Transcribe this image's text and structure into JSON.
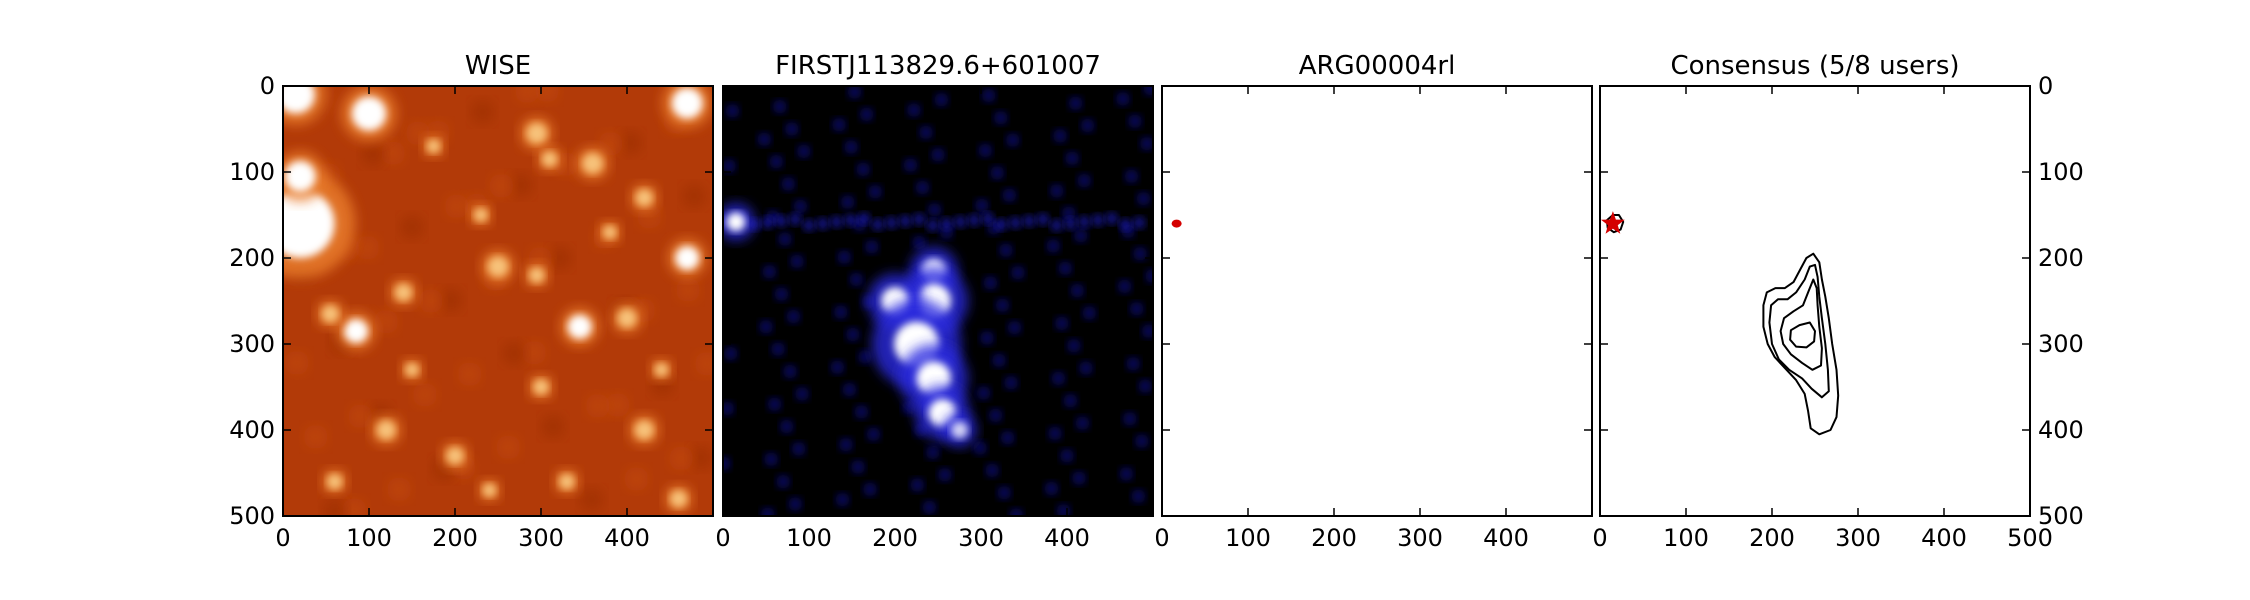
{
  "chart_data": [
    {
      "type": "heatmap",
      "title": "WISE",
      "colormap": "orange-white",
      "xlim": [
        0,
        500
      ],
      "ylim": [
        500,
        0
      ],
      "x_ticks": [
        0,
        100,
        200,
        300,
        400
      ],
      "y_ticks": [
        0,
        100,
        200,
        300,
        400,
        500
      ],
      "y_tick_side": "left",
      "bright_sources": [
        {
          "x": 15,
          "y": 10,
          "r": 22
        },
        {
          "x": 100,
          "y": 32,
          "r": 20
        },
        {
          "x": 20,
          "y": 160,
          "r": 40
        },
        {
          "x": 20,
          "y": 105,
          "r": 18
        },
        {
          "x": 470,
          "y": 20,
          "r": 18
        },
        {
          "x": 470,
          "y": 200,
          "r": 14
        },
        {
          "x": 85,
          "y": 285,
          "r": 14
        },
        {
          "x": 345,
          "y": 280,
          "r": 14
        },
        {
          "x": 295,
          "y": 55,
          "r": 12
        },
        {
          "x": 310,
          "y": 85,
          "r": 9
        },
        {
          "x": 360,
          "y": 90,
          "r": 12
        },
        {
          "x": 420,
          "y": 130,
          "r": 10
        },
        {
          "x": 250,
          "y": 210,
          "r": 12
        },
        {
          "x": 295,
          "y": 220,
          "r": 9
        },
        {
          "x": 55,
          "y": 265,
          "r": 10
        },
        {
          "x": 140,
          "y": 240,
          "r": 10
        },
        {
          "x": 400,
          "y": 270,
          "r": 11
        },
        {
          "x": 300,
          "y": 350,
          "r": 9
        },
        {
          "x": 120,
          "y": 400,
          "r": 11
        },
        {
          "x": 200,
          "y": 430,
          "r": 10
        },
        {
          "x": 60,
          "y": 460,
          "r": 9
        },
        {
          "x": 330,
          "y": 460,
          "r": 9
        },
        {
          "x": 420,
          "y": 400,
          "r": 11
        },
        {
          "x": 460,
          "y": 480,
          "r": 10
        },
        {
          "x": 175,
          "y": 70,
          "r": 8
        },
        {
          "x": 230,
          "y": 150,
          "r": 8
        },
        {
          "x": 440,
          "y": 330,
          "r": 8
        },
        {
          "x": 240,
          "y": 470,
          "r": 8
        },
        {
          "x": 150,
          "y": 330,
          "r": 8
        },
        {
          "x": 380,
          "y": 170,
          "r": 8
        }
      ]
    },
    {
      "type": "heatmap",
      "title": "FIRSTJ113829.6+601007",
      "colormap": "black-blue-white",
      "xlim": [
        0,
        500
      ],
      "ylim": [
        500,
        0
      ],
      "x_ticks": [
        0,
        100,
        200,
        300,
        400
      ],
      "y_ticks": [],
      "bright_sources": [
        {
          "x": 15,
          "y": 158,
          "r": 11,
          "peak": 1.0
        },
        {
          "x": 245,
          "y": 215,
          "r": 14,
          "peak": 1.0
        },
        {
          "x": 245,
          "y": 250,
          "r": 20,
          "peak": 1.0
        },
        {
          "x": 200,
          "y": 250,
          "r": 16,
          "peak": 1.0
        },
        {
          "x": 225,
          "y": 300,
          "r": 26,
          "peak": 1.0
        },
        {
          "x": 245,
          "y": 340,
          "r": 20,
          "peak": 1.0
        },
        {
          "x": 255,
          "y": 380,
          "r": 16,
          "peak": 1.0
        },
        {
          "x": 275,
          "y": 400,
          "r": 10,
          "peak": 0.8
        }
      ]
    },
    {
      "type": "scatter",
      "title": "ARG00004rl",
      "xlim": [
        0,
        500
      ],
      "ylim": [
        500,
        0
      ],
      "x_ticks": [
        0,
        100,
        200,
        300,
        400
      ],
      "y_ticks": [],
      "points": [
        {
          "x": 17,
          "y": 160,
          "color": "#d40000"
        }
      ]
    },
    {
      "type": "scatter",
      "title": "Consensus (5/8 users)",
      "xlim": [
        0,
        500
      ],
      "ylim": [
        500,
        0
      ],
      "x_ticks": [
        0,
        100,
        200,
        300,
        400,
        500
      ],
      "y_ticks": [
        0,
        100,
        200,
        300,
        400,
        500
      ],
      "y_tick_side": "right",
      "points": [
        {
          "x": 15,
          "y": 160,
          "marker": "star",
          "color": "#d40000"
        }
      ],
      "contours": [
        [
          [
            15,
            150
          ],
          [
            22,
            150
          ],
          [
            27,
            158
          ],
          [
            24,
            167
          ],
          [
            16,
            170
          ],
          [
            9,
            165
          ],
          [
            8,
            156
          ]
        ],
        [
          [
            240,
            200
          ],
          [
            248,
            195
          ],
          [
            255,
            205
          ],
          [
            258,
            225
          ],
          [
            262,
            245
          ],
          [
            266,
            270
          ],
          [
            270,
            300
          ],
          [
            275,
            330
          ],
          [
            277,
            360
          ],
          [
            275,
            385
          ],
          [
            268,
            400
          ],
          [
            255,
            405
          ],
          [
            245,
            398
          ],
          [
            242,
            378
          ],
          [
            238,
            358
          ],
          [
            228,
            342
          ],
          [
            215,
            328
          ],
          [
            203,
            315
          ],
          [
            195,
            300
          ],
          [
            190,
            280
          ],
          [
            190,
            255
          ],
          [
            194,
            240
          ],
          [
            204,
            235
          ],
          [
            215,
            235
          ],
          [
            225,
            228
          ],
          [
            232,
            215
          ]
        ],
        [
          [
            244,
            210
          ],
          [
            250,
            208
          ],
          [
            253,
            222
          ],
          [
            255,
            245
          ],
          [
            258,
            270
          ],
          [
            262,
            300
          ],
          [
            265,
            330
          ],
          [
            266,
            355
          ],
          [
            258,
            362
          ],
          [
            246,
            352
          ],
          [
            235,
            340
          ],
          [
            220,
            330
          ],
          [
            208,
            318
          ],
          [
            200,
            300
          ],
          [
            197,
            275
          ],
          [
            199,
            255
          ],
          [
            207,
            248
          ],
          [
            218,
            248
          ],
          [
            228,
            240
          ],
          [
            238,
            225
          ]
        ],
        [
          [
            248,
            225
          ],
          [
            252,
            235
          ],
          [
            253,
            255
          ],
          [
            255,
            280
          ],
          [
            258,
            305
          ],
          [
            257,
            325
          ],
          [
            247,
            330
          ],
          [
            235,
            322
          ],
          [
            222,
            312
          ],
          [
            213,
            300
          ],
          [
            210,
            285
          ],
          [
            214,
            270
          ],
          [
            225,
            262
          ],
          [
            236,
            255
          ],
          [
            242,
            240
          ]
        ],
        [
          [
            232,
            278
          ],
          [
            244,
            275
          ],
          [
            250,
            285
          ],
          [
            249,
            297
          ],
          [
            240,
            304
          ],
          [
            228,
            303
          ],
          [
            221,
            295
          ],
          [
            222,
            284
          ]
        ]
      ]
    }
  ]
}
